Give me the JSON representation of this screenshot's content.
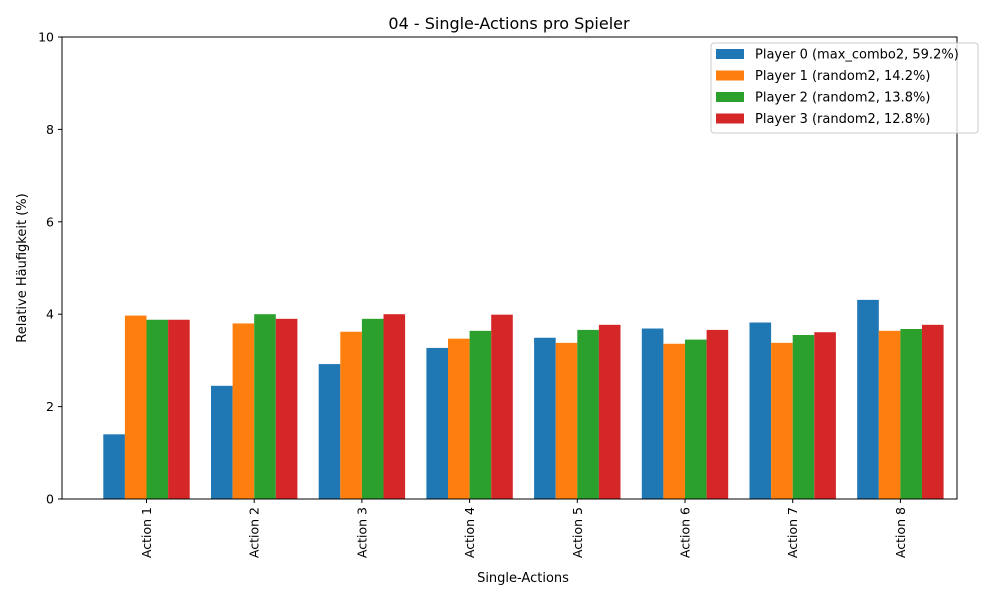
{
  "chart_data": {
    "type": "bar",
    "title": "04 - Single-Actions pro Spieler",
    "xlabel": "Single-Actions",
    "ylabel": "Relative Häufigkeit (%)",
    "ylim": [
      0,
      10
    ],
    "yticks": [
      "0",
      "2",
      "4",
      "6",
      "8",
      "10"
    ],
    "categories": [
      "Action 1",
      "Action 2",
      "Action 3",
      "Action 4",
      "Action 5",
      "Action 6",
      "Action 7",
      "Action 8"
    ],
    "series": [
      {
        "name": "Player 0 (max_combo2, 59.2%)",
        "color": "#1f77b4",
        "values": [
          1.4,
          2.45,
          2.92,
          3.27,
          3.49,
          3.69,
          3.82,
          4.31
        ]
      },
      {
        "name": "Player 1 (random2, 14.2%)",
        "color": "#ff7f0e",
        "values": [
          3.97,
          3.8,
          3.62,
          3.47,
          3.38,
          3.36,
          3.38,
          3.64
        ]
      },
      {
        "name": "Player 2 (random2, 13.8%)",
        "color": "#2ca02c",
        "values": [
          3.88,
          4.0,
          3.9,
          3.64,
          3.66,
          3.45,
          3.55,
          3.68
        ]
      },
      {
        "name": "Player 3 (random2, 12.8%)",
        "color": "#d62728",
        "values": [
          3.88,
          3.9,
          4.0,
          3.99,
          3.77,
          3.66,
          3.61,
          3.77
        ]
      }
    ],
    "legend_position": "top-right",
    "grid": false
  }
}
